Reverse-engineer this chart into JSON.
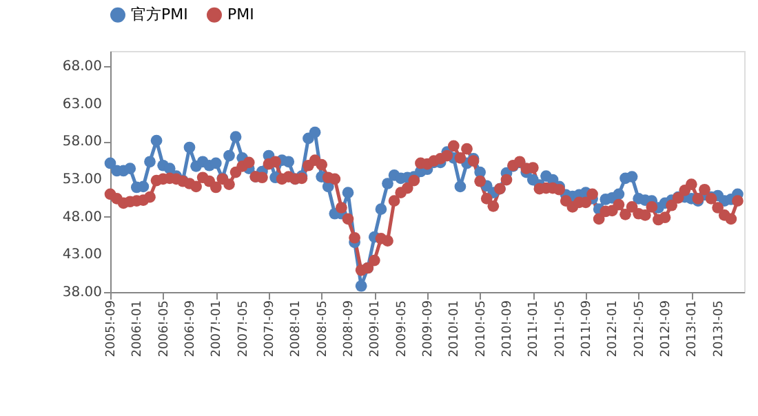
{
  "chart_data": {
    "type": "line",
    "categories": [
      "2005!-09",
      null,
      null,
      null,
      "2006!-01",
      null,
      null,
      null,
      "2006!-05",
      null,
      null,
      null,
      "2006!-09",
      null,
      null,
      null,
      "2007!-01",
      null,
      null,
      null,
      "2007!-05",
      null,
      null,
      null,
      "2007!-09",
      null,
      null,
      null,
      "2008!-01",
      null,
      null,
      null,
      "2008!-05",
      null,
      null,
      null,
      "2008!-09",
      null,
      null,
      null,
      "2009!-01",
      null,
      null,
      null,
      "2009!-05",
      null,
      null,
      null,
      "2009!-09",
      null,
      null,
      null,
      "2010!-01",
      null,
      null,
      null,
      "2010!-05",
      null,
      null,
      null,
      "2010!-09",
      null,
      null,
      null,
      "2011!-01",
      null,
      null,
      null,
      "2011!-05",
      null,
      null,
      null,
      "2011!-09",
      null,
      null,
      null,
      "2012!-01",
      null,
      null,
      null,
      "2012!-05",
      null,
      null,
      null,
      "2012!-09",
      null,
      null,
      null,
      "2013!-01",
      null,
      null,
      null,
      "2013!-05",
      null,
      null,
      null
    ],
    "series": [
      {
        "name": "官方PMI",
        "color": "#4f81bd",
        "values": [
          55.1,
          54.1,
          54.1,
          54.4,
          51.9,
          52.0,
          55.3,
          58.1,
          54.8,
          54.4,
          53.4,
          52.8,
          57.2,
          54.7,
          55.3,
          54.8,
          55.1,
          53.1,
          56.1,
          58.6,
          55.8,
          54.4,
          53.3,
          54.0,
          56.1,
          53.2,
          55.5,
          55.3,
          53.0,
          53.4,
          58.4,
          59.2,
          53.3,
          52.0,
          48.4,
          48.4,
          51.2,
          44.6,
          38.8,
          41.2,
          45.3,
          49.0,
          52.4,
          53.5,
          53.1,
          53.2,
          53.3,
          54.0,
          54.3,
          55.2,
          55.2,
          56.6,
          55.8,
          52.0,
          55.1,
          55.7,
          53.9,
          52.1,
          51.2,
          51.7,
          53.8,
          54.7,
          55.2,
          53.9,
          52.9,
          52.2,
          53.4,
          52.9,
          52.0,
          50.9,
          50.7,
          50.9,
          51.2,
          50.4,
          49.0,
          50.3,
          50.5,
          51.0,
          53.1,
          53.3,
          50.4,
          50.2,
          50.1,
          49.2,
          49.8,
          50.2,
          50.6,
          50.6,
          50.4,
          50.1,
          50.9,
          50.6,
          50.8,
          50.1,
          50.3,
          51.0
        ]
      },
      {
        "name": "PMI",
        "color": "#c0504d",
        "values": [
          51.0,
          50.4,
          49.8,
          50.0,
          50.1,
          50.2,
          50.6,
          52.8,
          53.0,
          53.1,
          53.0,
          52.7,
          52.4,
          52.0,
          53.2,
          52.7,
          51.9,
          53.0,
          52.3,
          53.9,
          54.7,
          55.2,
          53.3,
          53.2,
          55.0,
          55.3,
          53.0,
          53.3,
          53.0,
          53.1,
          54.8,
          55.5,
          54.9,
          53.2,
          53.0,
          49.2,
          47.7,
          45.2,
          40.9,
          41.2,
          42.2,
          45.1,
          44.8,
          50.1,
          51.2,
          51.8,
          52.8,
          55.1,
          55.0,
          55.4,
          55.7,
          56.1,
          57.4,
          55.8,
          57.0,
          55.4,
          52.7,
          50.4,
          49.4,
          51.7,
          52.9,
          54.8,
          55.3,
          54.4,
          54.5,
          51.7,
          51.8,
          51.8,
          51.6,
          50.1,
          49.3,
          49.9,
          49.9,
          51.0,
          47.7,
          48.7,
          48.8,
          49.6,
          48.3,
          49.3,
          48.4,
          48.2,
          49.3,
          47.6,
          47.9,
          49.5,
          50.5,
          51.5,
          52.3,
          50.4,
          51.6,
          50.4,
          49.2,
          48.2,
          47.7,
          50.1
        ]
      }
    ],
    "ylim": [
      38,
      70
    ],
    "yticks": [
      {
        "value": 38,
        "label": "38.00"
      },
      {
        "value": 43,
        "label": "43.00"
      },
      {
        "value": 48,
        "label": "48.00"
      },
      {
        "value": 53,
        "label": "53.00"
      },
      {
        "value": 58,
        "label": "58.00"
      },
      {
        "value": 63,
        "label": "63.00"
      },
      {
        "value": 68,
        "label": "68.00"
      }
    ],
    "grid": false,
    "legend": "top",
    "marker": "circle",
    "line_style": "solid"
  }
}
